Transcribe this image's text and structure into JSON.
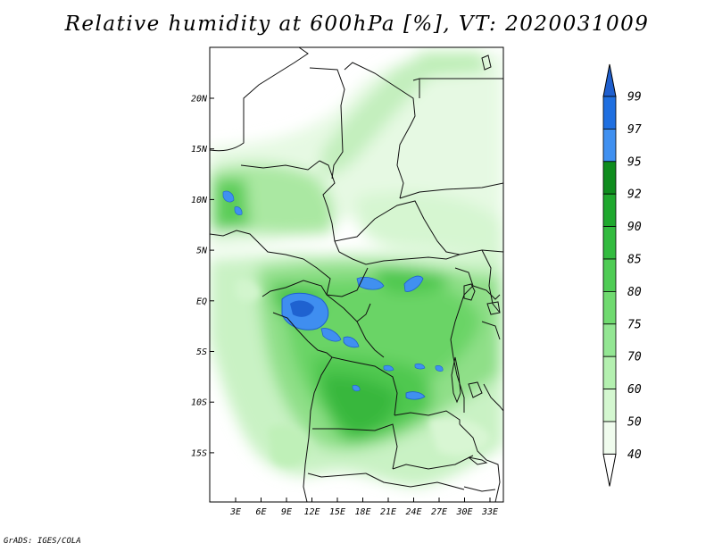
{
  "title": "Relative humidity at 600hPa [%], VT: 2020031009",
  "credit": "GrADS: IGES/COLA",
  "map": {
    "lon_ticks": [
      "3E",
      "6E",
      "9E",
      "12E",
      "15E",
      "18E",
      "21E",
      "24E",
      "27E",
      "30E",
      "33E"
    ],
    "lat_ticks": [
      "20N",
      "15N",
      "10N",
      "5N",
      "EQ",
      "5S",
      "10S",
      "15S"
    ]
  },
  "colorbar": {
    "labels": [
      "99",
      "97",
      "95",
      "92",
      "90",
      "85",
      "80",
      "75",
      "70",
      "60",
      "50",
      "40"
    ],
    "colors": [
      "#1f5fce",
      "#1f6fe0",
      "#4090f0",
      "#0f8c1e",
      "#1fa82e",
      "#33bb3f",
      "#4fcc55",
      "#70da70",
      "#93e693",
      "#b4f0b0",
      "#d4f7d0",
      "#f0fcee"
    ]
  }
}
